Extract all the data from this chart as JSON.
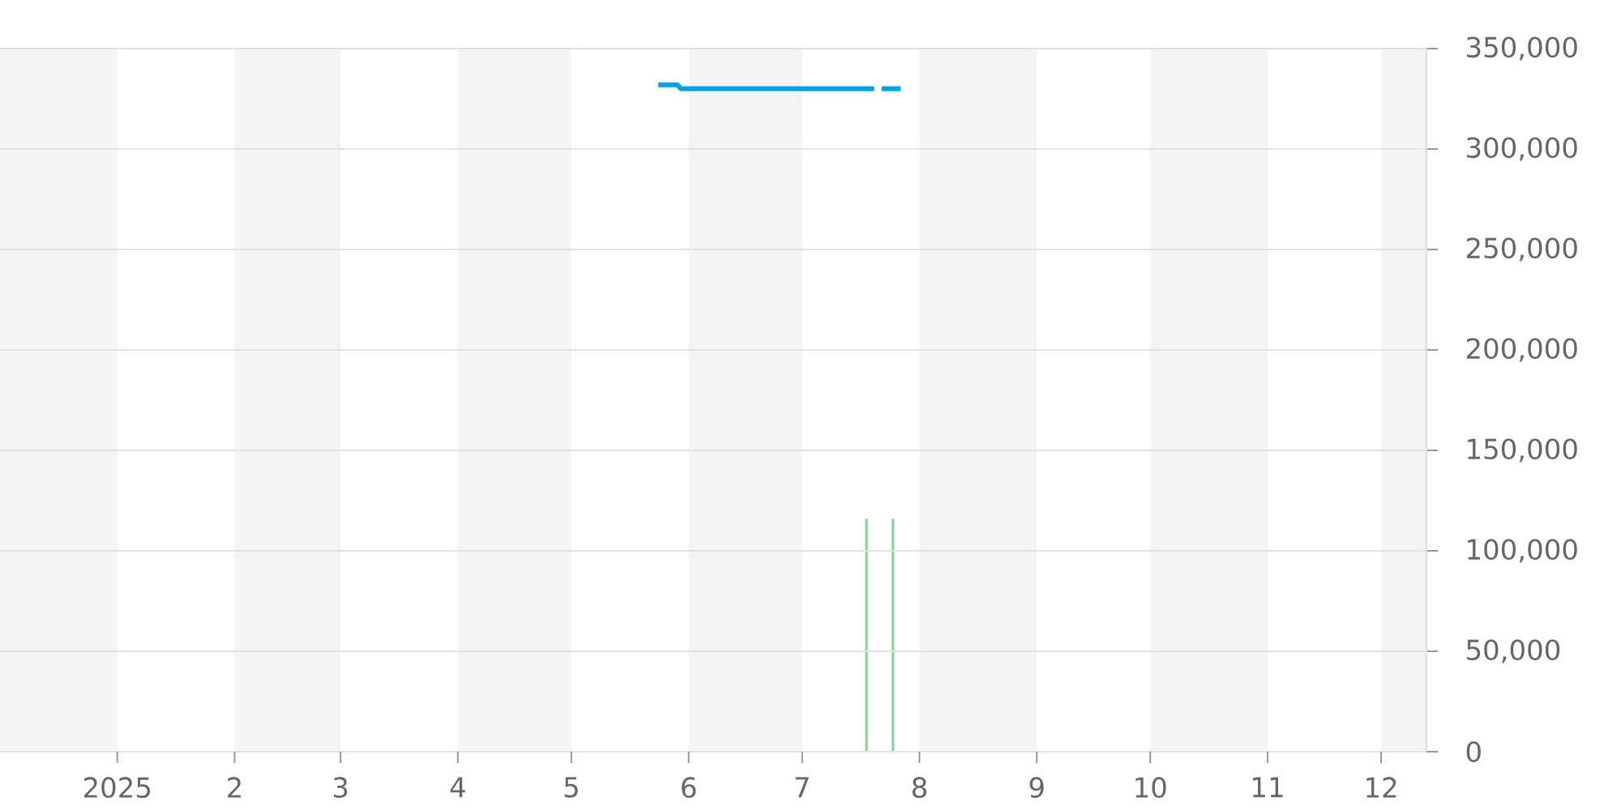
{
  "chart_data": {
    "type": "line",
    "series": [
      {
        "color": "#00a0e9",
        "x": [
          "2025-05-24",
          "2025-05-29",
          "2025-05-30",
          "2025-07-20",
          "2025-07-21",
          "2025-07-22",
          "2025-07-27"
        ],
        "values": [
          332000,
          332000,
          330000,
          330000,
          null,
          330000,
          330000
        ]
      },
      {
        "type": "bar",
        "color": "#8fd19e",
        "x": [
          "2025-07-18",
          "2025-07-25"
        ],
        "values": [
          116000,
          116000
        ]
      }
    ],
    "xlim": [
      "2024-12-01",
      "2025-12-13"
    ],
    "xticks": [
      {
        "value": "2025-01-01",
        "label": "2025"
      },
      {
        "value": "2025-02-01",
        "label": "2"
      },
      {
        "value": "2025-03-01",
        "label": "3"
      },
      {
        "value": "2025-04-01",
        "label": "4"
      },
      {
        "value": "2025-05-01",
        "label": "5"
      },
      {
        "value": "2025-06-01",
        "label": "6"
      },
      {
        "value": "2025-07-01",
        "label": "7"
      },
      {
        "value": "2025-08-01",
        "label": "8"
      },
      {
        "value": "2025-09-01",
        "label": "9"
      },
      {
        "value": "2025-10-01",
        "label": "10"
      },
      {
        "value": "2025-11-01",
        "label": "11"
      },
      {
        "value": "2025-12-01",
        "label": "12"
      }
    ],
    "ylim": [
      0,
      350000
    ],
    "yticks": [
      0,
      {
        "value": 50000,
        "label": "50,000"
      },
      {
        "value": 100000,
        "label": "100,000"
      },
      {
        "value": 150000,
        "label": "150,000"
      },
      {
        "value": 200000,
        "label": "200,000"
      },
      {
        "value": 250000,
        "label": "250,000"
      },
      {
        "value": 300000,
        "label": "300,000"
      },
      {
        "value": 350000,
        "label": "350,000"
      }
    ],
    "grid": "y",
    "bands": [
      {
        "axis": "x",
        "from": "2024-12-01",
        "to": "2025-01-01",
        "color": "#f4f4f4"
      },
      {
        "axis": "x",
        "from": "2025-02-01",
        "to": "2025-03-01",
        "color": "#f4f4f4"
      },
      {
        "axis": "x",
        "from": "2025-04-01",
        "to": "2025-05-01",
        "color": "#f4f4f4"
      },
      {
        "axis": "x",
        "from": "2025-06-01",
        "to": "2025-07-01",
        "color": "#f4f4f4"
      },
      {
        "axis": "x",
        "from": "2025-08-01",
        "to": "2025-09-01",
        "color": "#f4f4f4"
      },
      {
        "axis": "x",
        "from": "2025-10-01",
        "to": "2025-11-01",
        "color": "#f4f4f4"
      },
      {
        "axis": "x",
        "from": "2025-12-01",
        "to": "2025-12-13",
        "color": "#f4f4f4"
      }
    ]
  }
}
